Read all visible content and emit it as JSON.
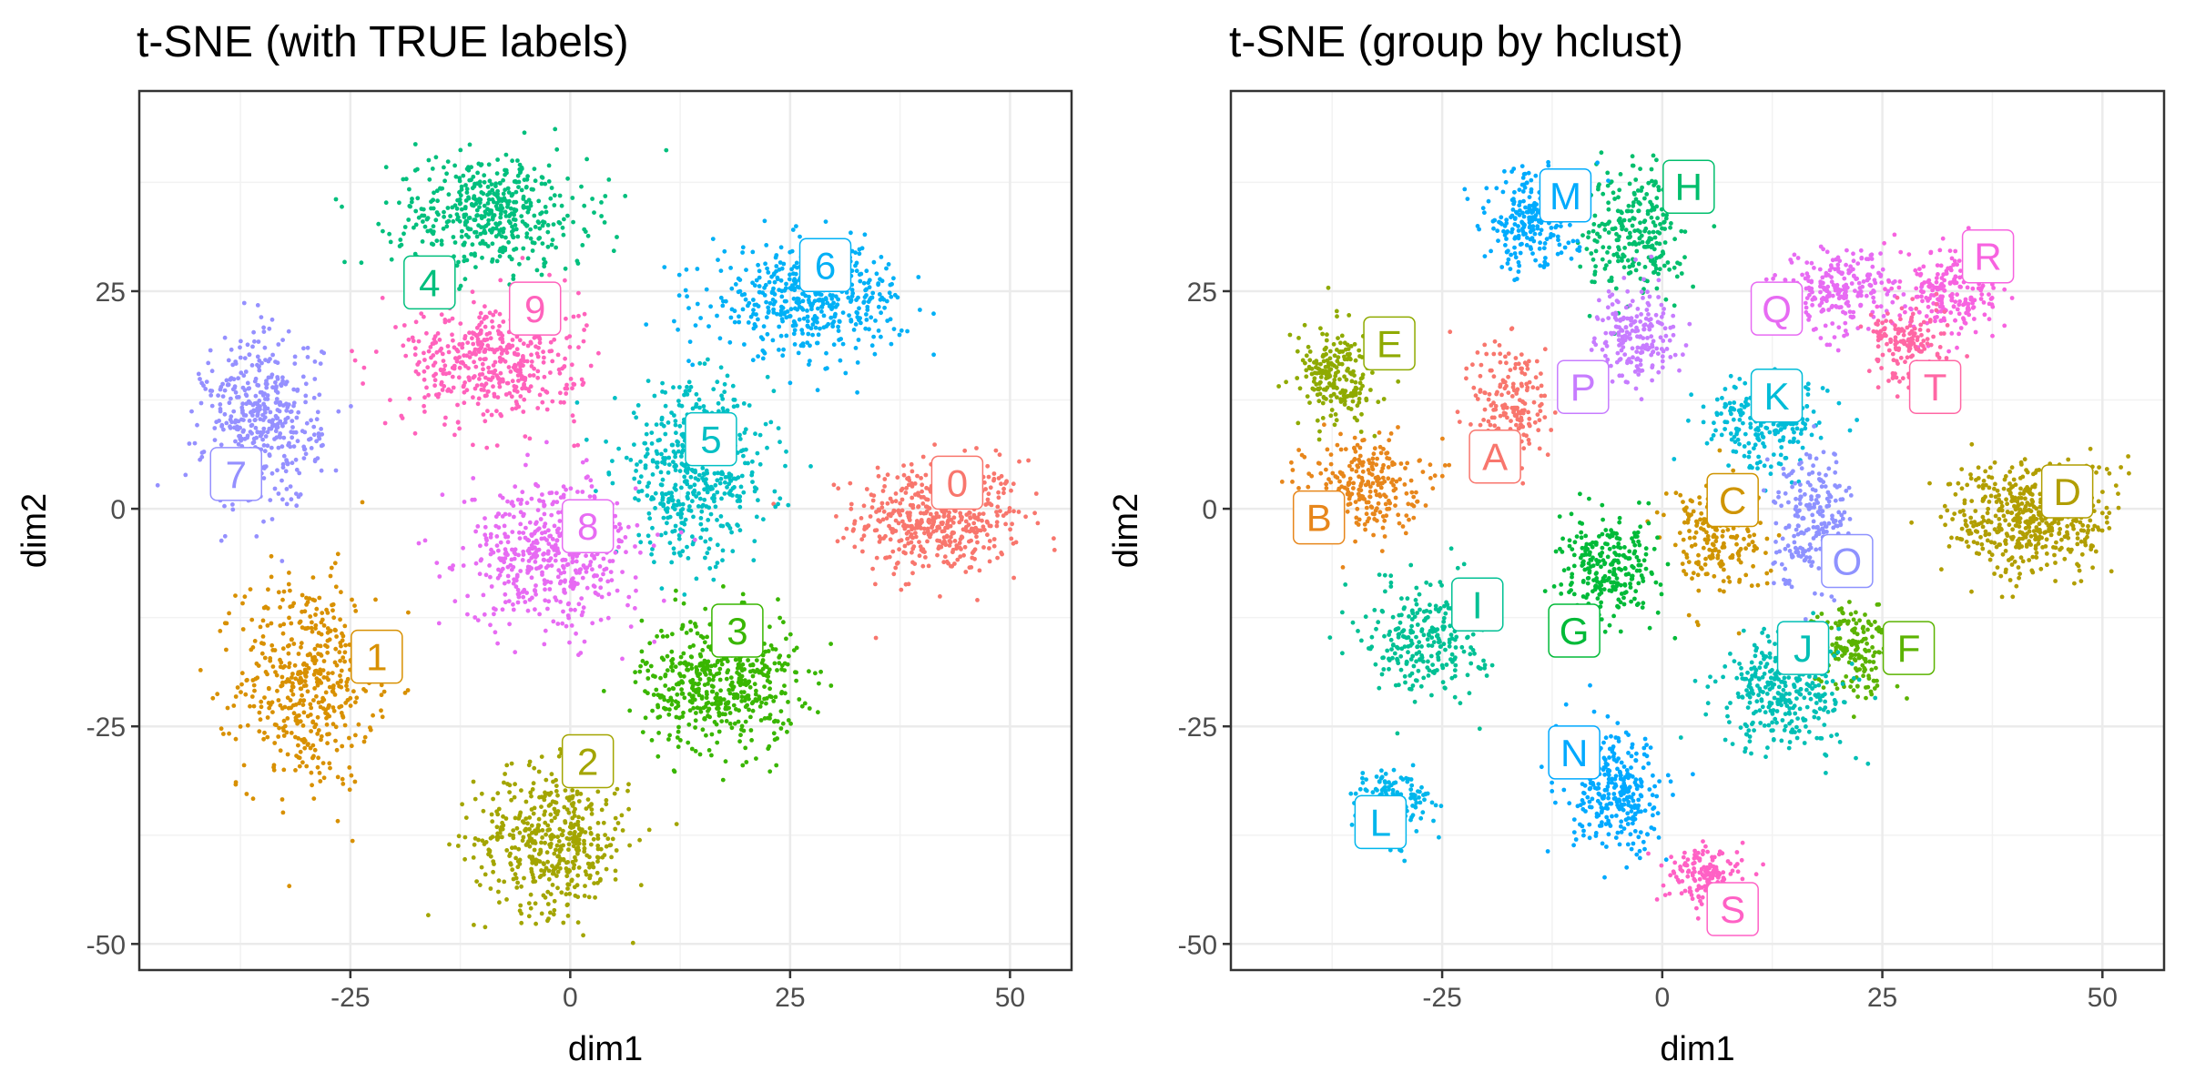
{
  "chart_data": [
    {
      "type": "scatter",
      "title": "t-SNE (with TRUE labels)",
      "xlabel": "dim1",
      "ylabel": "dim2",
      "xlim": [
        -49,
        57
      ],
      "ylim": [
        -53,
        48
      ],
      "xticks": [
        -25,
        0,
        25,
        50
      ],
      "yticks": [
        -50,
        -25,
        0,
        25
      ],
      "xtick_labels": [
        "-25",
        "0",
        "25",
        "50"
      ],
      "ytick_labels": [
        "-50",
        "-25",
        "0",
        "25"
      ],
      "grid": true,
      "legend": "none",
      "clusters": [
        {
          "label": "0",
          "color": "#F8766D",
          "label_at": [
            44,
            3
          ],
          "center": [
            42,
            -1
          ],
          "spread": [
            8.5,
            6
          ],
          "n": 520
        },
        {
          "label": "1",
          "color": "#D89000",
          "label_at": [
            -22,
            -17
          ],
          "center": [
            -30,
            -20
          ],
          "spread": [
            7,
            11
          ],
          "n": 480
        },
        {
          "label": "2",
          "color": "#A3A500",
          "label_at": [
            2,
            -29
          ],
          "center": [
            -2,
            -38
          ],
          "spread": [
            8,
            7.5
          ],
          "n": 480
        },
        {
          "label": "3",
          "color": "#39B600",
          "label_at": [
            19,
            -14
          ],
          "center": [
            17,
            -20
          ],
          "spread": [
            8,
            7
          ],
          "n": 520
        },
        {
          "label": "4",
          "color": "#00BF7D",
          "label_at": [
            -16,
            26
          ],
          "center": [
            -9,
            34
          ],
          "spread": [
            10,
            6
          ],
          "n": 480
        },
        {
          "label": "5",
          "color": "#00BFC4",
          "label_at": [
            16,
            8
          ],
          "center": [
            14,
            4
          ],
          "spread": [
            8,
            9
          ],
          "n": 500
        },
        {
          "label": "6",
          "color": "#00B0F6",
          "label_at": [
            29,
            28
          ],
          "center": [
            27,
            24
          ],
          "spread": [
            10,
            5.5
          ],
          "n": 480
        },
        {
          "label": "7",
          "color": "#9590FF",
          "label_at": [
            -38,
            4
          ],
          "center": [
            -35,
            10
          ],
          "spread": [
            6,
            9
          ],
          "n": 440
        },
        {
          "label": "8",
          "color": "#E76BF3",
          "label_at": [
            2,
            -2
          ],
          "center": [
            -2,
            -5
          ],
          "spread": [
            9,
            7.5
          ],
          "n": 520
        },
        {
          "label": "9",
          "color": "#FF62BC",
          "label_at": [
            -4,
            23
          ],
          "center": [
            -9,
            17
          ],
          "spread": [
            9,
            6.5
          ],
          "n": 460
        }
      ]
    },
    {
      "type": "scatter",
      "title": "t-SNE (group by hclust)",
      "xlabel": "dim1",
      "ylabel": "dim2",
      "xlim": [
        -49,
        57
      ],
      "ylim": [
        -53,
        48
      ],
      "xticks": [
        -25,
        0,
        25,
        50
      ],
      "yticks": [
        -50,
        -25,
        0,
        25
      ],
      "xtick_labels": [
        "-25",
        "0",
        "25",
        "50"
      ],
      "ytick_labels": [
        "-50",
        "-25",
        "0",
        "25"
      ],
      "grid": true,
      "legend": "none",
      "clusters": [
        {
          "label": "A",
          "color": "#F8766D",
          "label_at": [
            -19,
            6
          ],
          "center": [
            -17,
            12
          ],
          "spread": [
            4,
            7
          ],
          "n": 180
        },
        {
          "label": "B",
          "color": "#E7861B",
          "label_at": [
            -39,
            -1
          ],
          "center": [
            -34,
            3
          ],
          "spread": [
            6,
            5
          ],
          "n": 260
        },
        {
          "label": "C",
          "color": "#CF9400",
          "label_at": [
            8,
            1
          ],
          "center": [
            6,
            -3
          ],
          "spread": [
            5,
            6
          ],
          "n": 220
        },
        {
          "label": "D",
          "color": "#B19E00",
          "label_at": [
            46,
            2
          ],
          "center": [
            42,
            -1
          ],
          "spread": [
            8.5,
            6
          ],
          "n": 500
        },
        {
          "label": "E",
          "color": "#8FAA00",
          "label_at": [
            -31,
            19
          ],
          "center": [
            -37,
            15
          ],
          "spread": [
            4,
            5
          ],
          "n": 220
        },
        {
          "label": "F",
          "color": "#5BB300",
          "label_at": [
            28,
            -16
          ],
          "center": [
            22,
            -16
          ],
          "spread": [
            4,
            5
          ],
          "n": 180
        },
        {
          "label": "G",
          "color": "#00BA38",
          "label_at": [
            -10,
            -14
          ],
          "center": [
            -6,
            -7
          ],
          "spread": [
            5,
            5
          ],
          "n": 260
        },
        {
          "label": "H",
          "color": "#00BE6C",
          "label_at": [
            3,
            37
          ],
          "center": [
            -3,
            32
          ],
          "spread": [
            5,
            7
          ],
          "n": 260
        },
        {
          "label": "I",
          "color": "#00C094",
          "label_at": [
            -21,
            -11
          ],
          "center": [
            -27,
            -15
          ],
          "spread": [
            6,
            6
          ],
          "n": 260
        },
        {
          "label": "J",
          "color": "#00BFB5",
          "label_at": [
            16,
            -16
          ],
          "center": [
            14,
            -21
          ],
          "spread": [
            7,
            6
          ],
          "n": 320
        },
        {
          "label": "K",
          "color": "#00BCD8",
          "label_at": [
            13,
            13
          ],
          "center": [
            12,
            10
          ],
          "spread": [
            6,
            5
          ],
          "n": 240
        },
        {
          "label": "L",
          "color": "#00B6EC",
          "label_at": [
            -32,
            -36
          ],
          "center": [
            -31,
            -34
          ],
          "spread": [
            4,
            4
          ],
          "n": 180
        },
        {
          "label": "M",
          "color": "#00ABFD",
          "label_at": [
            -11,
            36
          ],
          "center": [
            -15,
            33
          ],
          "spread": [
            5,
            5
          ],
          "n": 240
        },
        {
          "label": "N",
          "color": "#00A9FF",
          "label_at": [
            -10,
            -28
          ],
          "center": [
            -5,
            -33
          ],
          "spread": [
            5,
            6
          ],
          "n": 300
        },
        {
          "label": "O",
          "color": "#8E92FF",
          "label_at": [
            21,
            -6
          ],
          "center": [
            17,
            -1
          ],
          "spread": [
            4,
            7
          ],
          "n": 220
        },
        {
          "label": "P",
          "color": "#C77CFF",
          "label_at": [
            -9,
            14
          ],
          "center": [
            -3,
            20
          ],
          "spread": [
            4,
            5
          ],
          "n": 200
        },
        {
          "label": "Q",
          "color": "#E76BF3",
          "label_at": [
            13,
            23
          ],
          "center": [
            20,
            25
          ],
          "spread": [
            6,
            4
          ],
          "n": 240
        },
        {
          "label": "R",
          "color": "#F763E0",
          "label_at": [
            37,
            29
          ],
          "center": [
            33,
            25
          ],
          "spread": [
            5,
            5
          ],
          "n": 220
        },
        {
          "label": "S",
          "color": "#FF61C5",
          "label_at": [
            8,
            -46
          ],
          "center": [
            5,
            -42
          ],
          "spread": [
            4,
            3
          ],
          "n": 160
        },
        {
          "label": "T",
          "color": "#FF67A4",
          "label_at": [
            31,
            14
          ],
          "center": [
            28,
            19
          ],
          "spread": [
            4,
            4
          ],
          "n": 160
        }
      ]
    }
  ]
}
